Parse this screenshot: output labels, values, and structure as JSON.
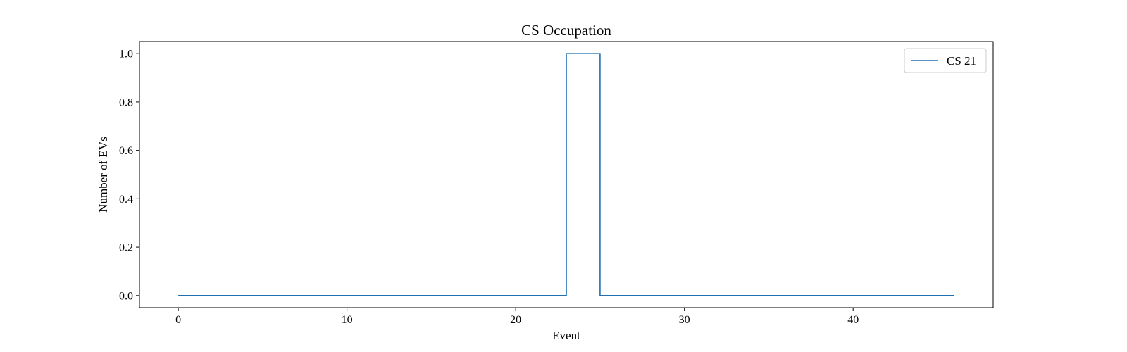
{
  "chart_data": {
    "type": "line",
    "title": "CS Occupation",
    "xlabel": "Event",
    "ylabel": "Number of EVs",
    "xlim": [
      -2.3,
      48.3
    ],
    "ylim": [
      -0.05,
      1.05
    ],
    "xticks": [
      0,
      10,
      20,
      30,
      40
    ],
    "xtick_labels": [
      "0",
      "10",
      "20",
      "30",
      "40"
    ],
    "yticks": [
      0.0,
      0.2,
      0.4,
      0.6,
      0.8,
      1.0
    ],
    "ytick_labels": [
      "0.0",
      "0.2",
      "0.4",
      "0.6",
      "0.8",
      "1.0"
    ],
    "grid": false,
    "legend_position": "upper right",
    "step": "post",
    "series": [
      {
        "name": "CS 21",
        "color": "#1f6fb5",
        "x": [
          0,
          23,
          25,
          46
        ],
        "y": [
          0,
          1,
          0,
          0
        ]
      }
    ]
  }
}
